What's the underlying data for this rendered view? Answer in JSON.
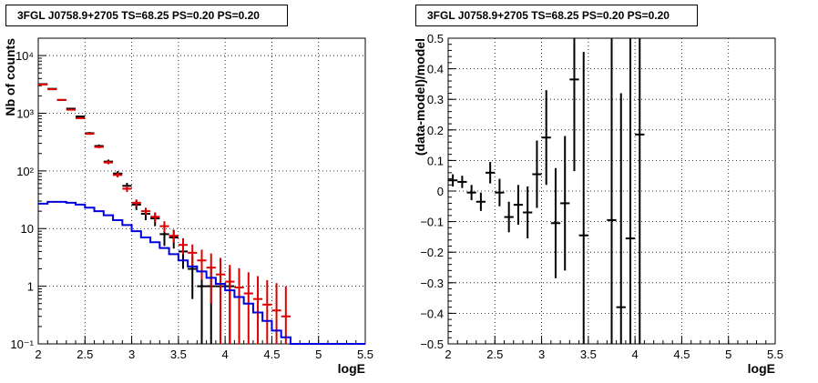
{
  "chart_data": [
    {
      "type": "line",
      "title": "3FGL J0758.9+2705 TS=68.25 PS=0.20 PS=0.20",
      "xlabel": "logE",
      "ylabel": "Nb of counts",
      "xlim": [
        2,
        5.5
      ],
      "ylim": [
        0.1,
        20000
      ],
      "yscale": "log",
      "grid": true,
      "x_ticks": [
        "2",
        "2.5",
        "3",
        "3.5",
        "4",
        "4.5",
        "5",
        "5.5"
      ],
      "y_ticks": [
        "10⁻¹",
        "1",
        "10",
        "10²",
        "10³",
        "10⁴"
      ],
      "series": [
        {
          "kind": "errorbars",
          "color": "#000000",
          "x": [
            2.05,
            2.15,
            2.25,
            2.35,
            2.45,
            2.55,
            2.65,
            2.75,
            2.85,
            2.95,
            3.05,
            3.15,
            3.25,
            3.35,
            3.45,
            3.55,
            3.65,
            3.75,
            3.85,
            3.95,
            4.05
          ],
          "y": [
            3200,
            2650,
            1700,
            1200,
            880,
            450,
            270,
            145,
            90,
            55,
            26,
            18,
            15,
            8,
            7,
            4,
            2,
            1,
            1,
            1,
            1
          ],
          "yerr_low": [
            60,
            50,
            40,
            35,
            30,
            21,
            16,
            12,
            9,
            7,
            5,
            4,
            4,
            3,
            2.5,
            2,
            1.4,
            1,
            1,
            1,
            1
          ],
          "yerr_high": [
            60,
            50,
            40,
            35,
            30,
            21,
            16,
            12,
            9,
            7,
            5,
            4,
            4,
            3,
            2.5,
            2,
            1.4,
            1,
            1,
            1,
            1
          ]
        },
        {
          "kind": "errorbars",
          "color": "#dd0000",
          "x": [
            2.05,
            2.15,
            2.25,
            2.35,
            2.45,
            2.55,
            2.65,
            2.75,
            2.85,
            2.95,
            3.05,
            3.15,
            3.25,
            3.35,
            3.45,
            3.55,
            3.65,
            3.75,
            3.85,
            3.95,
            4.05,
            4.15,
            4.25,
            4.35,
            4.45,
            4.55,
            4.65
          ],
          "y": [
            3150,
            2600,
            1700,
            1150,
            820,
            440,
            260,
            140,
            85,
            49,
            28,
            20,
            16,
            11,
            7.5,
            5.2,
            3.8,
            2.8,
            2.1,
            1.6,
            1.2,
            0.95,
            0.75,
            0.6,
            0.48,
            0.38,
            0.3
          ],
          "yerr_low": [
            50,
            45,
            35,
            30,
            25,
            18,
            14,
            10,
            8,
            6,
            4,
            3,
            3,
            2.4,
            1.8,
            1.6,
            1.5,
            1.5,
            1.6,
            1.5,
            1.15,
            0.9,
            0.7,
            0.55,
            0.45,
            0.33,
            0.25
          ],
          "yerr_high": [
            50,
            45,
            35,
            30,
            25,
            18,
            14,
            10,
            8,
            6,
            4,
            3,
            3,
            2.4,
            1.8,
            1.6,
            1.5,
            1.5,
            1.6,
            1.5,
            1.15,
            1.1,
            1.0,
            0.9,
            0.8,
            0.75,
            0.7
          ]
        },
        {
          "kind": "step",
          "color": "#0000dd",
          "x_edges": [
            2.0,
            2.1,
            2.2,
            2.3,
            2.4,
            2.5,
            2.6,
            2.7,
            2.8,
            2.9,
            3.0,
            3.1,
            3.2,
            3.3,
            3.4,
            3.5,
            3.6,
            3.7,
            3.8,
            3.9,
            4.0,
            4.1,
            4.2,
            4.3,
            4.4,
            4.5,
            4.6,
            4.7,
            4.8,
            4.9,
            5.0,
            5.1,
            5.2,
            5.3,
            5.4,
            5.5
          ],
          "y": [
            27,
            29,
            29,
            28,
            26,
            23,
            20,
            17,
            14,
            11.5,
            9,
            7,
            5.8,
            4.6,
            3.6,
            2.8,
            2.2,
            1.8,
            1.4,
            1.1,
            0.85,
            0.65,
            0.5,
            0.35,
            0.25,
            0.17,
            0.13,
            0.1,
            0.1,
            0.1,
            0.1,
            0.1,
            0.1,
            0.1,
            0.1
          ]
        }
      ]
    },
    {
      "type": "scatter",
      "title": "3FGL J0758.9+2705 TS=68.25 PS=0.20 PS=0.20",
      "xlabel": "logE",
      "ylabel": "(data-model)/model",
      "xlim": [
        2,
        5.5
      ],
      "ylim": [
        -0.5,
        0.5
      ],
      "grid": true,
      "x_ticks": [
        "2",
        "2.5",
        "3",
        "3.5",
        "4",
        "4.5",
        "5",
        "5.5"
      ],
      "y_ticks": [
        "−0.5",
        "−0.4",
        "−0.3",
        "−0.2",
        "−0.1",
        "0",
        "0.1",
        "0.2",
        "0.3",
        "0.4",
        "0.5"
      ],
      "series": [
        {
          "kind": "errorbars",
          "color": "#000000",
          "x": [
            2.05,
            2.15,
            2.25,
            2.35,
            2.45,
            2.55,
            2.65,
            2.75,
            2.85,
            2.95,
            3.05,
            3.15,
            3.25,
            3.35,
            3.45,
            3.75,
            3.85,
            3.95,
            4.05
          ],
          "y": [
            0.035,
            0.03,
            -0.005,
            -0.035,
            0.06,
            -0.005,
            -0.085,
            -0.045,
            -0.07,
            0.055,
            0.175,
            -0.105,
            -0.04,
            0.365,
            -0.145,
            -0.095,
            -0.38,
            -0.155,
            0.185
          ],
          "yerr": [
            0.02,
            0.02,
            0.025,
            0.03,
            0.035,
            0.045,
            0.05,
            0.065,
            0.085,
            0.11,
            0.155,
            0.18,
            0.22,
            0.3,
            0.6,
            1.0,
            0.7,
            1.0,
            1.0
          ]
        }
      ]
    }
  ]
}
